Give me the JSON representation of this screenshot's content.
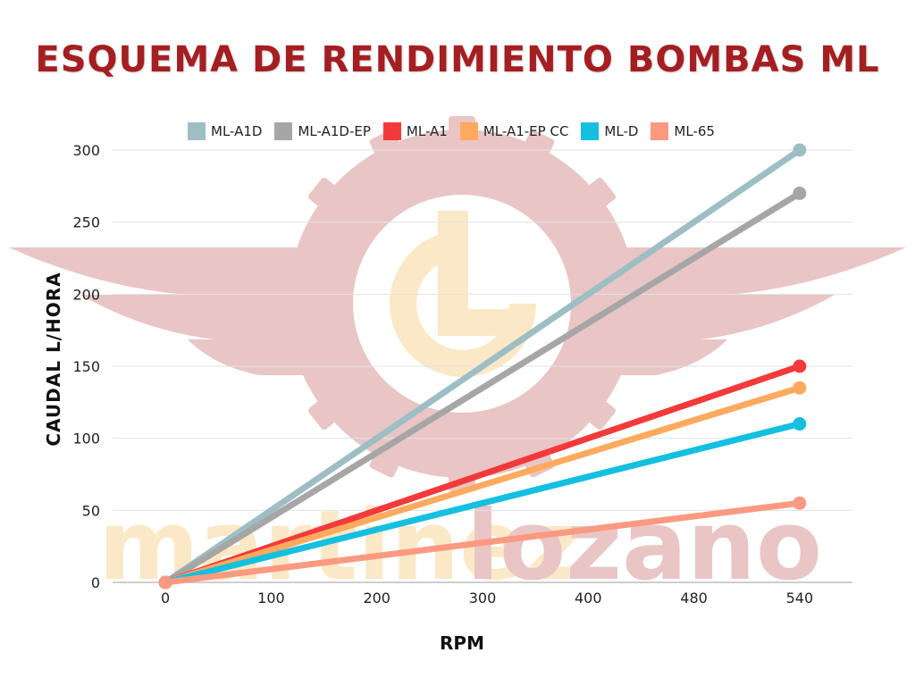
{
  "header": {
    "title": "ESQUEMA DE RENDIMIENTO BOMBAS ML"
  },
  "watermark": {
    "brand_left": "martinez",
    "brand_right": "lozano"
  },
  "colors": {
    "title": "#a41e22",
    "watermark_red": "#e9c5c5",
    "watermark_yellow": "#fbe8c6",
    "grid": "#e3e3e3"
  },
  "chart_data": {
    "type": "line",
    "title": "ESQUEMA DE RENDIMIENTO BOMBAS ML",
    "xlabel": "RPM",
    "ylabel": "CAUDAL L/HORA",
    "categories": [
      "0",
      "100",
      "200",
      "300",
      "400",
      "480",
      "540"
    ],
    "ylim": [
      0,
      300
    ],
    "yticks": [
      "0",
      "50",
      "100",
      "150",
      "200",
      "250",
      "300"
    ],
    "grid": true,
    "legend_position": "top",
    "series": [
      {
        "name": "ML-A1D",
        "color": "#9dbfc4",
        "values": [
          0,
          null,
          null,
          null,
          null,
          null,
          300
        ]
      },
      {
        "name": "ML-A1D-EP",
        "color": "#a6a6a6",
        "values": [
          0,
          null,
          null,
          null,
          null,
          null,
          270
        ]
      },
      {
        "name": "ML-A1",
        "color": "#f23a3a",
        "values": [
          0,
          null,
          null,
          null,
          null,
          null,
          150
        ]
      },
      {
        "name": "ML-A1-EP CC",
        "color": "#fdaa5e",
        "values": [
          0,
          null,
          null,
          null,
          null,
          null,
          135
        ]
      },
      {
        "name": "ML-D",
        "color": "#14bfe0",
        "values": [
          0,
          null,
          null,
          null,
          null,
          null,
          110
        ]
      },
      {
        "name": "ML-65",
        "color": "#fb9a80",
        "values": [
          0,
          null,
          null,
          null,
          null,
          null,
          55
        ]
      }
    ]
  }
}
